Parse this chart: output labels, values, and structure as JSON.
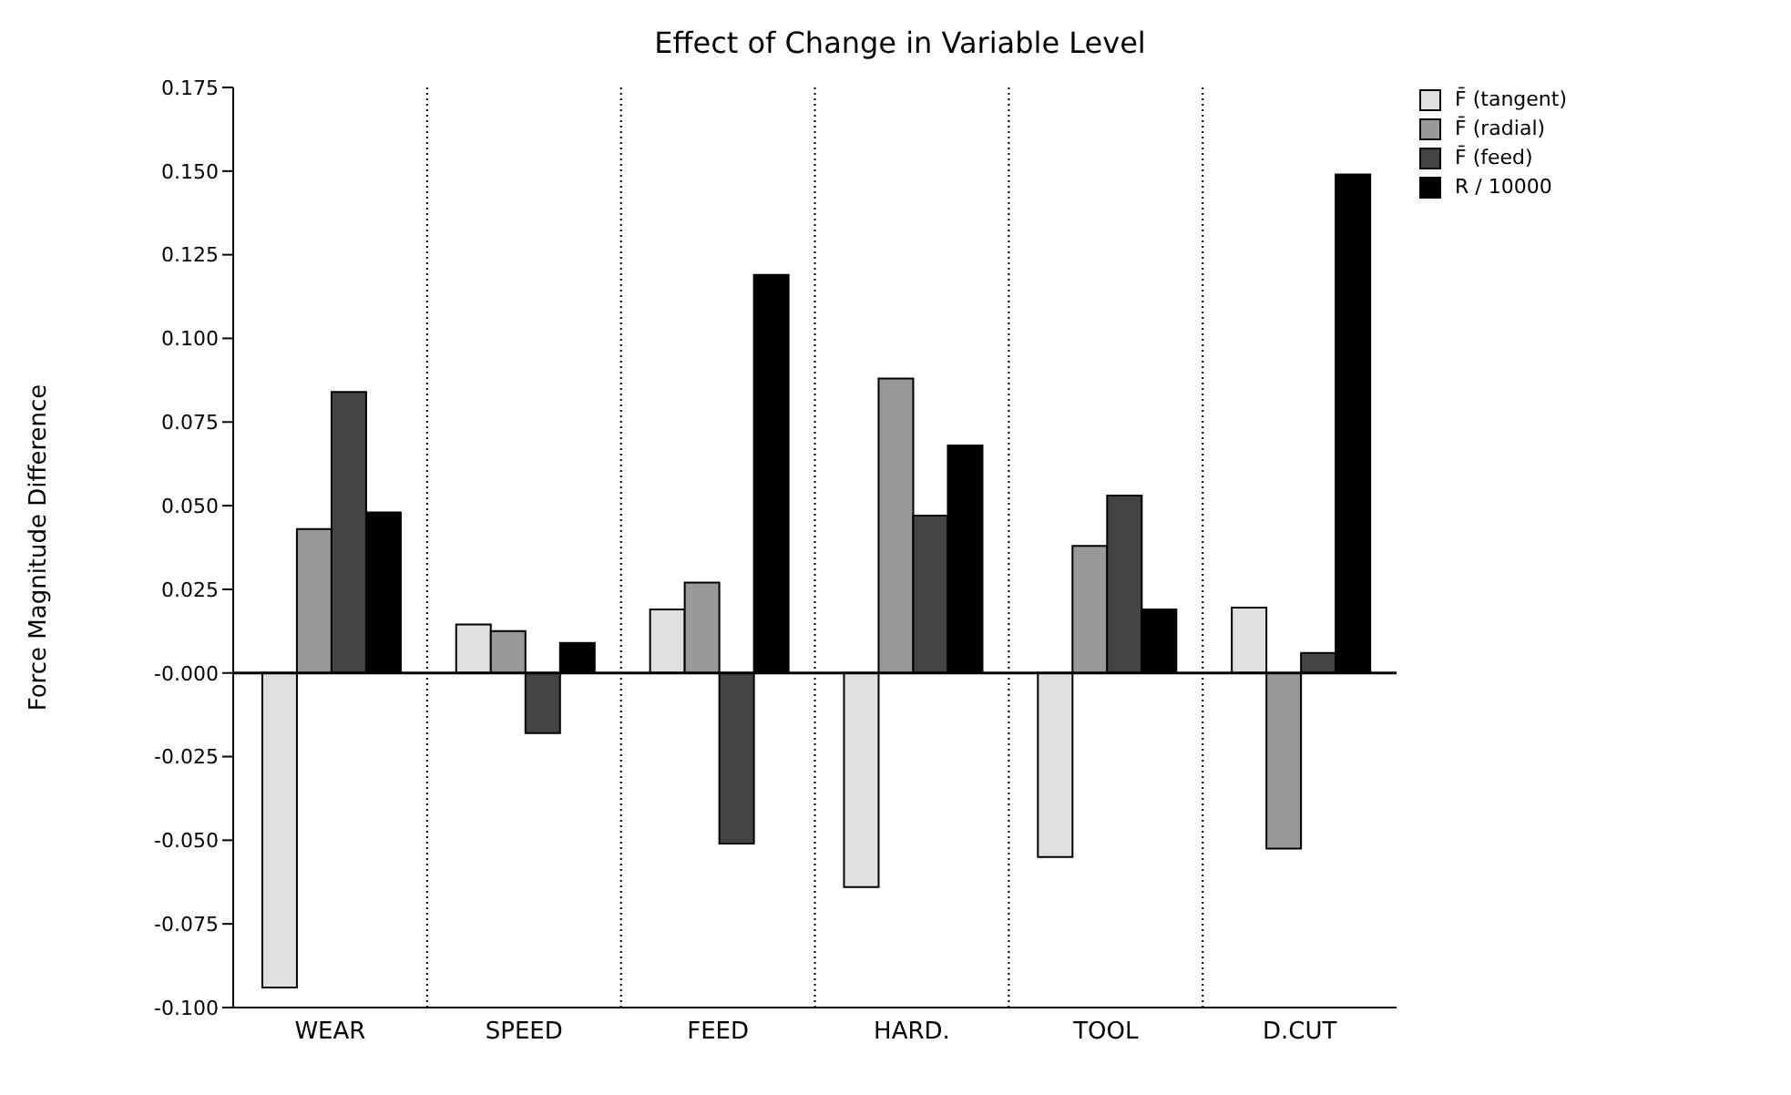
{
  "chart_data": {
    "type": "bar",
    "title": "Effect of Change in Variable Level",
    "ylabel": "Force Magnitude Difference",
    "categories": [
      "WEAR",
      "SPEED",
      "FEED",
      "HARD.",
      "TOOL",
      "D.CUT"
    ],
    "series": [
      {
        "name": "F̄ (tangent)",
        "color": "#e0e0e0",
        "values": [
          -0.094,
          0.0145,
          0.019,
          -0.064,
          -0.055,
          0.0195
        ]
      },
      {
        "name": "F̄ (radial)",
        "color": "#999999",
        "values": [
          0.043,
          0.0125,
          0.027,
          0.088,
          0.038,
          -0.0525
        ]
      },
      {
        "name": "F̄ (feed)",
        "color": "#444444",
        "values": [
          0.084,
          -0.018,
          -0.051,
          0.047,
          0.053,
          0.006
        ]
      },
      {
        "name": "R / 10000",
        "color": "#000000",
        "values": [
          0.048,
          0.009,
          0.119,
          0.068,
          0.019,
          0.149
        ]
      }
    ],
    "ylim": [
      -0.1,
      0.175
    ],
    "yticks": [
      {
        "value": -0.1,
        "label": "-0.100"
      },
      -0.075,
      {
        "value": -0.05,
        "label": "-0.050"
      },
      -0.025,
      {
        "value": 0,
        "label": "-0.000"
      },
      0.025,
      {
        "value": 0.05,
        "label": "0.050"
      },
      0.075,
      {
        "value": 0.1,
        "label": "0.100"
      },
      0.125,
      {
        "value": 0.15,
        "label": "0.150"
      },
      0.175
    ],
    "ref_lines": [
      {
        "axis": "y",
        "value": 0
      }
    ],
    "grid": "x",
    "legend": "top right"
  }
}
